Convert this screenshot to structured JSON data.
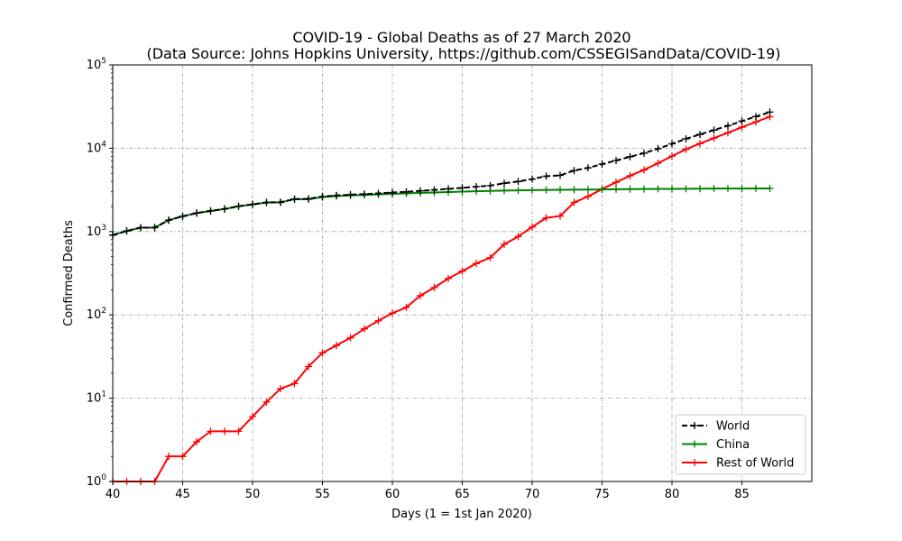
{
  "chart_data": {
    "type": "line",
    "title": "COVID-19 - Global Deaths as of 27 March 2020",
    "subtitle": "(Data Source: Johns Hopkins University, https://github.com/CSSEGISandData/COVID-19)",
    "xlabel": "Days (1 = 1st Jan 2020)",
    "ylabel": "Confirmed Deaths",
    "xlim": [
      40,
      90
    ],
    "ylim": [
      1,
      100000
    ],
    "yscale": "log",
    "grid": true,
    "legend_position": "lower-right",
    "x_ticks": [
      40,
      45,
      50,
      55,
      60,
      65,
      70,
      75,
      80,
      85
    ],
    "y_ticks": [
      {
        "value": 1,
        "base": "10",
        "exp": "0"
      },
      {
        "value": 10,
        "base": "10",
        "exp": "1"
      },
      {
        "value": 100,
        "base": "10",
        "exp": "2"
      },
      {
        "value": 1000,
        "base": "10",
        "exp": "3"
      },
      {
        "value": 10000,
        "base": "10",
        "exp": "4"
      },
      {
        "value": 100000,
        "base": "10",
        "exp": "5"
      }
    ],
    "x": [
      40,
      41,
      42,
      43,
      44,
      45,
      46,
      47,
      48,
      49,
      50,
      51,
      52,
      53,
      54,
      55,
      56,
      57,
      58,
      59,
      60,
      61,
      62,
      63,
      64,
      65,
      66,
      67,
      68,
      69,
      70,
      71,
      72,
      73,
      74,
      75,
      76,
      77,
      78,
      79,
      80,
      81,
      82,
      83,
      84,
      85,
      86,
      87
    ],
    "series": [
      {
        "name": "World",
        "color": "#000000",
        "dash": "dashed",
        "marker": "+",
        "values": [
          908,
          1017,
          1114,
          1115,
          1371,
          1524,
          1668,
          1771,
          1869,
          2013,
          2121,
          2240,
          2250,
          2458,
          2470,
          2630,
          2710,
          2771,
          2812,
          2873,
          2943,
          2996,
          3085,
          3160,
          3254,
          3348,
          3460,
          3558,
          3802,
          3988,
          4262,
          4615,
          4720,
          5404,
          5819,
          6440,
          7126,
          7905,
          8733,
          9867,
          11299,
          12973,
          14651,
          16505,
          18625,
          21181,
          23970,
          27198
        ]
      },
      {
        "name": "China",
        "color": "#008000",
        "dash": "solid",
        "marker": "+",
        "values": [
          908,
          1016,
          1113,
          1113,
          1369,
          1522,
          1665,
          1767,
          1864,
          2009,
          2115,
          2231,
          2237,
          2443,
          2442,
          2595,
          2663,
          2715,
          2744,
          2788,
          2835,
          2870,
          2912,
          2945,
          2981,
          3013,
          3045,
          3071,
          3100,
          3124,
          3140,
          3162,
          3173,
          3180,
          3194,
          3204,
          3218,
          3231,
          3242,
          3250,
          3253,
          3261,
          3270,
          3276,
          3281,
          3285,
          3291,
          3296
        ]
      },
      {
        "name": "Rest of World",
        "color": "#ff0000",
        "dash": "solid",
        "marker": "+",
        "values": [
          1,
          1,
          1,
          1,
          2,
          2,
          3,
          4,
          4,
          4,
          6,
          9,
          13,
          15,
          24,
          35,
          43,
          53,
          68,
          85,
          105,
          123,
          170,
          213,
          273,
          335,
          414,
          486,
          704,
          871,
          1134,
          1460,
          1537,
          2237,
          2636,
          3236,
          3908,
          4674,
          5491,
          6617,
          8046,
          9712,
          11381,
          13229,
          15344,
          17896,
          20679,
          23902
        ]
      }
    ]
  }
}
